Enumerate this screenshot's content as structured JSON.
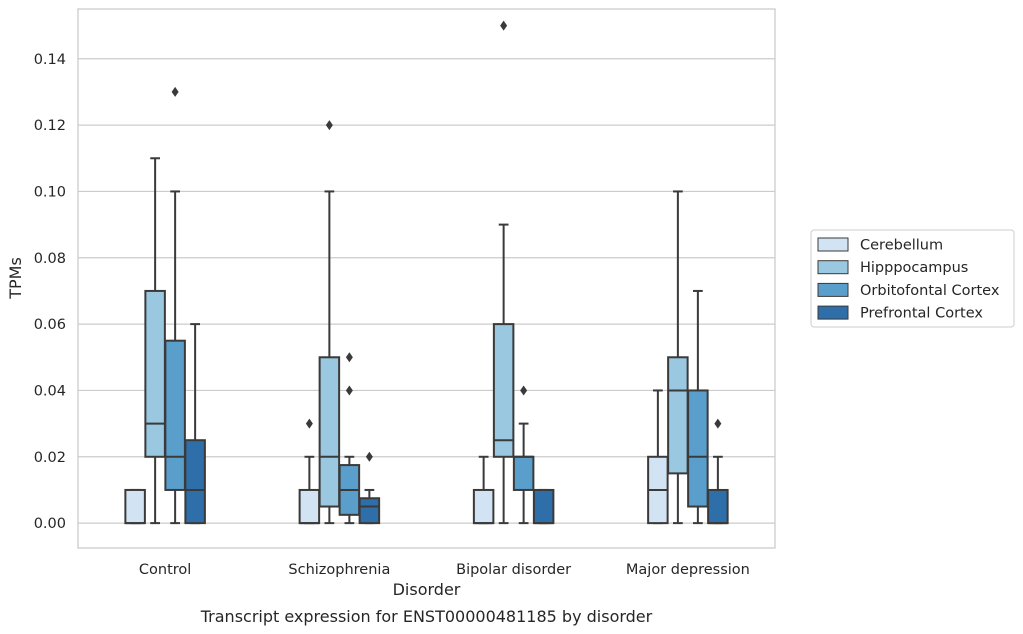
{
  "chart_data": {
    "type": "box",
    "xlabel": "Disorder",
    "ylabel": "TPMs",
    "caption": "Transcript expression for ENST00000481185 by disorder",
    "ylim": [
      -0.0075,
      0.155
    ],
    "yticks": [
      "0.00",
      "0.02",
      "0.04",
      "0.06",
      "0.08",
      "0.10",
      "0.12",
      "0.14"
    ],
    "grid": "horizontal",
    "legend_placement": "right",
    "categories": [
      "Control",
      "Schizophrenia",
      "Bipolar disorder",
      "Major depression"
    ],
    "series": [
      {
        "name": "Cerebellum",
        "color": "#d2e3f3",
        "boxes": [
          {
            "q1": 0.0,
            "median": 0.0,
            "q3": 0.01,
            "whislo": 0.0,
            "whishi": 0.01,
            "fliers": []
          },
          {
            "q1": 0.0,
            "median": 0.0,
            "q3": 0.01,
            "whislo": 0.0,
            "whishi": 0.02,
            "fliers": [
              0.03
            ]
          },
          {
            "q1": 0.0,
            "median": 0.0,
            "q3": 0.01,
            "whislo": 0.0,
            "whishi": 0.02,
            "fliers": []
          },
          {
            "q1": 0.0,
            "median": 0.01,
            "q3": 0.02,
            "whislo": 0.0,
            "whishi": 0.04,
            "fliers": []
          }
        ]
      },
      {
        "name": "Hipppocampus",
        "color": "#9ac8e0",
        "boxes": [
          {
            "q1": 0.02,
            "median": 0.03,
            "q3": 0.07,
            "whislo": 0.0,
            "whishi": 0.11,
            "fliers": []
          },
          {
            "q1": 0.005,
            "median": 0.02,
            "q3": 0.05,
            "whislo": 0.0,
            "whishi": 0.1,
            "fliers": [
              0.12
            ]
          },
          {
            "q1": 0.02,
            "median": 0.025,
            "q3": 0.06,
            "whislo": 0.0,
            "whishi": 0.09,
            "fliers": [
              0.15
            ]
          },
          {
            "q1": 0.015,
            "median": 0.04,
            "q3": 0.05,
            "whislo": 0.0,
            "whishi": 0.1,
            "fliers": []
          }
        ]
      },
      {
        "name": "Orbitofontal Cortex",
        "color": "#5a9ecc",
        "boxes": [
          {
            "q1": 0.01,
            "median": 0.02,
            "q3": 0.055,
            "whislo": 0.0,
            "whishi": 0.1,
            "fliers": [
              0.13
            ]
          },
          {
            "q1": 0.0025,
            "median": 0.01,
            "q3": 0.0175,
            "whislo": 0.0,
            "whishi": 0.02,
            "fliers": [
              0.04,
              0.05
            ]
          },
          {
            "q1": 0.01,
            "median": 0.02,
            "q3": 0.02,
            "whislo": 0.0,
            "whishi": 0.03,
            "fliers": [
              0.04
            ]
          },
          {
            "q1": 0.005,
            "median": 0.02,
            "q3": 0.04,
            "whislo": 0.0,
            "whishi": 0.07,
            "fliers": []
          }
        ]
      },
      {
        "name": "Prefrontal Cortex",
        "color": "#2e6ea9",
        "boxes": [
          {
            "q1": 0.0,
            "median": 0.01,
            "q3": 0.025,
            "whislo": 0.0,
            "whishi": 0.06,
            "fliers": []
          },
          {
            "q1": 0.0,
            "median": 0.005,
            "q3": 0.0075,
            "whislo": 0.0,
            "whishi": 0.01,
            "fliers": [
              0.02
            ]
          },
          {
            "q1": 0.0,
            "median": 0.0,
            "q3": 0.01,
            "whislo": 0.0,
            "whishi": 0.01,
            "fliers": []
          },
          {
            "q1": 0.0,
            "median": 0.0,
            "q3": 0.01,
            "whislo": 0.0,
            "whishi": 0.02,
            "fliers": [
              0.03
            ]
          }
        ]
      }
    ]
  }
}
